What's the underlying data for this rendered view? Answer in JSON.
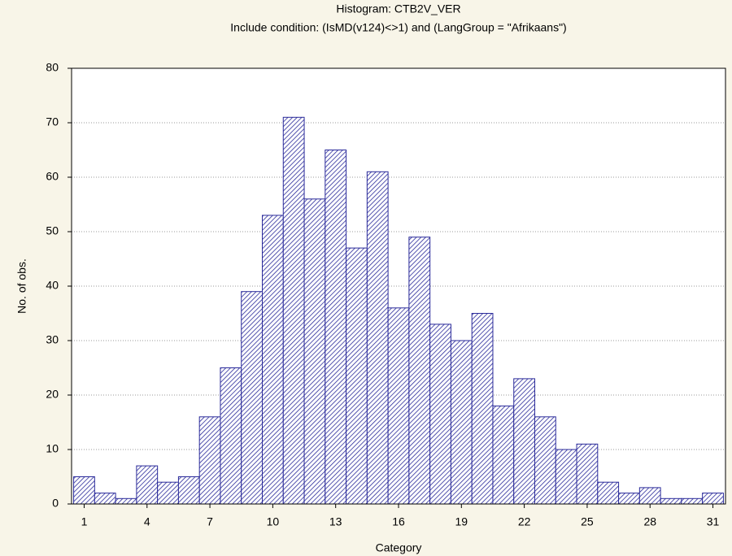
{
  "chart_data": {
    "type": "bar",
    "title": "Histogram: CTB2V_VER",
    "subtitle": "Include condition: (IsMD(v124)<>1)  and (LangGroup = \"Afrikaans\")",
    "x_label": "Category",
    "y_label": "No. of obs.",
    "x": [
      1,
      2,
      3,
      4,
      5,
      6,
      7,
      8,
      9,
      10,
      11,
      12,
      13,
      14,
      15,
      16,
      17,
      18,
      19,
      20,
      21,
      22,
      23,
      24,
      25,
      26,
      27,
      28,
      29,
      30,
      31
    ],
    "values": [
      5,
      2,
      1,
      7,
      4,
      5,
      16,
      25,
      39,
      53,
      71,
      56,
      65,
      47,
      61,
      36,
      49,
      33,
      30,
      35,
      18,
      23,
      16,
      10,
      11,
      4,
      2,
      3,
      1,
      1,
      2
    ],
    "color": "#2a2a9a",
    "xlim": [
      0.4,
      31.6
    ],
    "xticks": [
      1,
      4,
      7,
      10,
      13,
      16,
      19,
      22,
      25,
      28,
      31
    ],
    "ylim": [
      0,
      80
    ],
    "yticks": [
      0,
      10,
      20,
      30,
      40,
      50,
      60,
      70,
      80
    ],
    "grid": true
  }
}
